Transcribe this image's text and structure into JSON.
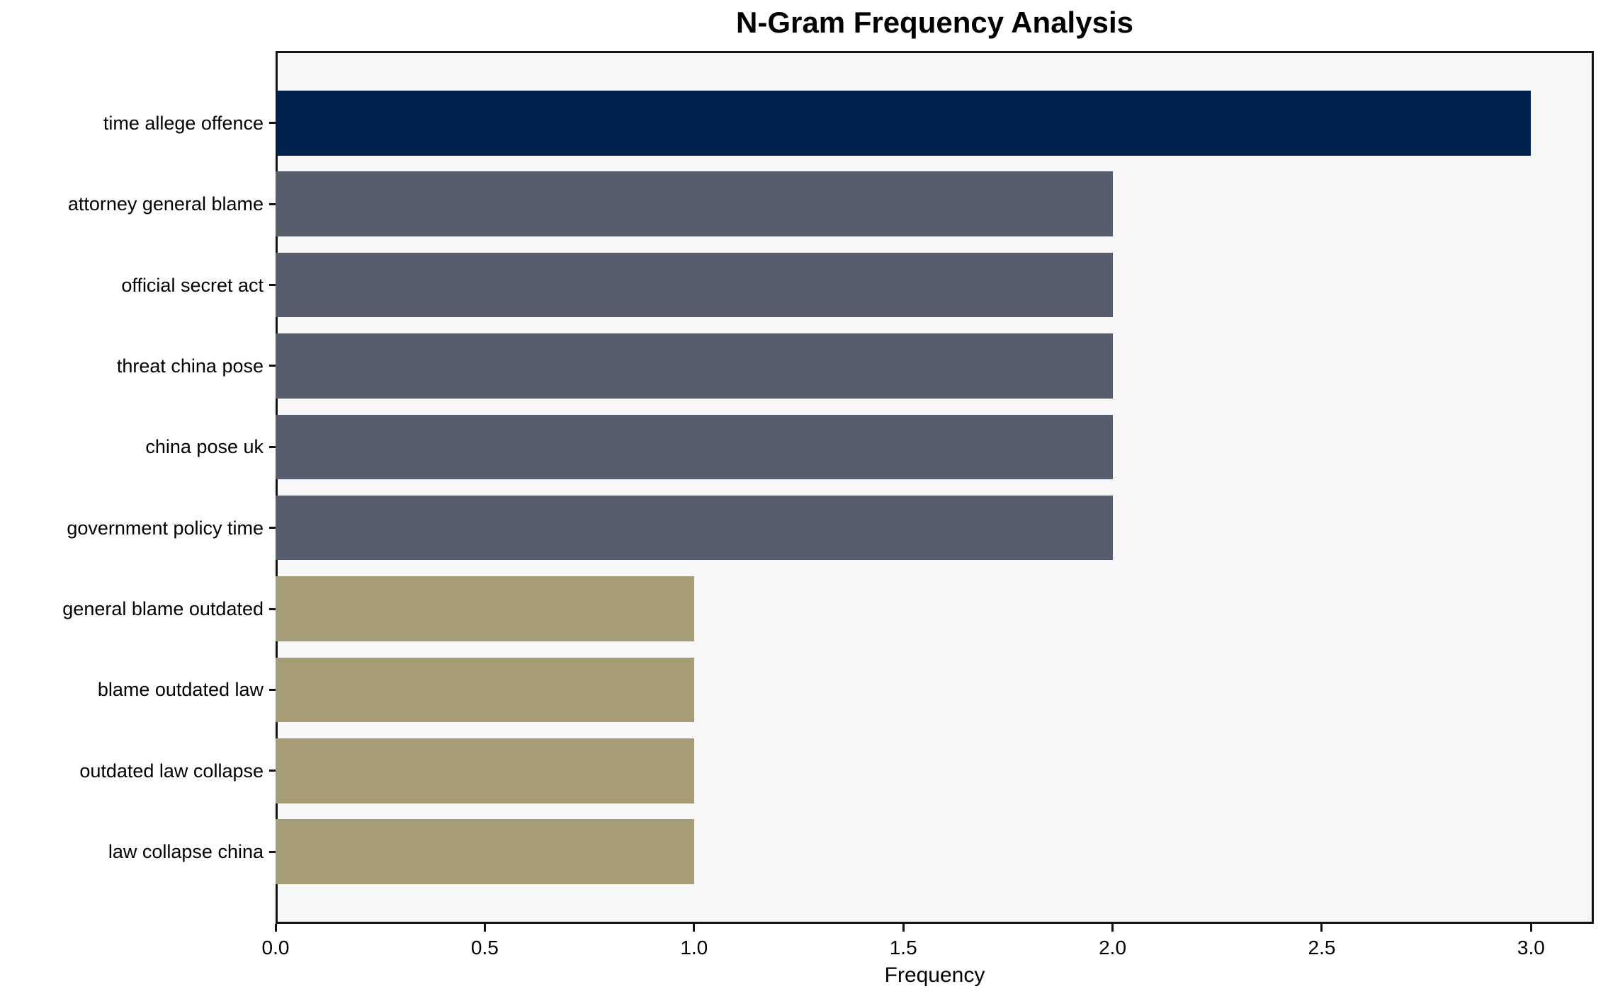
{
  "title": "N-Gram Frequency Analysis",
  "chart_data": {
    "type": "bar",
    "orientation": "horizontal",
    "title": "N-Gram Frequency Analysis",
    "categories": [
      "time allege offence",
      "attorney general blame",
      "official secret act",
      "threat china pose",
      "china pose uk",
      "government policy time",
      "general blame outdated",
      "blame outdated law",
      "outdated law collapse",
      "law collapse china"
    ],
    "values": [
      3,
      2,
      2,
      2,
      2,
      2,
      1,
      1,
      1,
      1
    ],
    "bar_colors": [
      "#00224e",
      "#575d6d",
      "#575d6d",
      "#575d6d",
      "#575d6d",
      "#575d6d",
      "#a69c75",
      "#a69c75",
      "#a69c75",
      "#a69c75"
    ],
    "xlabel": "Frequency",
    "ylabel": "",
    "xtick_labels": [
      "0.0",
      "0.5",
      "1.0",
      "1.5",
      "2.0",
      "2.5",
      "3.0"
    ],
    "xtick_values": [
      0.0,
      0.5,
      1.0,
      1.5,
      2.0,
      2.5,
      3.0
    ],
    "xlim": [
      0,
      3.15
    ],
    "grid": false,
    "legend": null,
    "plot_background": "#f7f7f8",
    "axis_color": "#141414"
  }
}
